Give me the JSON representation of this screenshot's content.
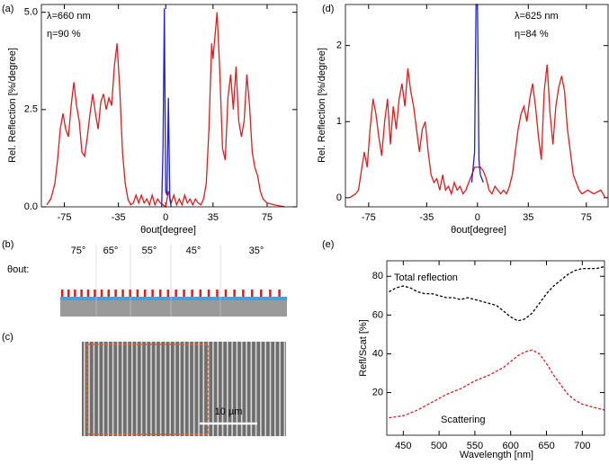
{
  "chart_data": [
    {
      "type": "line",
      "panel_label": "(a)",
      "xlabel": "θout[degree]",
      "ylabel": "Rel. Reflection [%/degree]",
      "xlim": [
        -92,
        97
      ],
      "ylim": [
        0,
        5.2
      ],
      "xticks": [
        -75,
        -35,
        0,
        35,
        75
      ],
      "yticks": [
        {
          "value": 0,
          "label": "0.0"
        },
        {
          "value": 2.5,
          "label": "2.5"
        },
        {
          "value": 5,
          "label": "5.0"
        }
      ],
      "annotations": [
        {
          "text": "λ=660 nm",
          "color": "#000000"
        },
        {
          "text": "η=90 %",
          "color": "#000000"
        }
      ],
      "series": [
        {
          "color": "#e41a1c",
          "dashed": false,
          "x": [
            -88,
            -85,
            -82,
            -80,
            -78,
            -76,
            -74,
            -72,
            -70,
            -68,
            -66,
            -64,
            -62,
            -60,
            -58,
            -56,
            -54,
            -52,
            -50,
            -48,
            -46,
            -44,
            -42,
            -40,
            -38,
            -36,
            -34,
            -32,
            -30,
            -28,
            -26,
            -24,
            -22,
            -20,
            -18,
            -16,
            -14,
            -12,
            -10,
            -8,
            -6,
            -4,
            -2,
            0,
            2,
            4,
            6,
            8,
            10,
            12,
            14,
            16,
            18,
            20,
            22,
            24,
            26,
            28,
            30,
            32,
            34,
            35,
            36,
            38,
            40,
            42,
            44,
            46,
            48,
            50,
            52,
            54,
            56,
            58,
            60,
            62,
            64,
            66,
            68,
            70,
            72,
            75,
            80,
            85,
            88
          ],
          "values": [
            0.05,
            0.2,
            0.6,
            1.2,
            2.0,
            2.4,
            2.0,
            1.8,
            2.6,
            3.2,
            2.6,
            2.2,
            1.4,
            1.3,
            1.8,
            2.4,
            2.9,
            2.4,
            2.0,
            2.7,
            2.9,
            2.5,
            2.8,
            2.6,
            3.6,
            4.2,
            3.0,
            1.4,
            0.6,
            0.2,
            0.05,
            0.1,
            0.3,
            0.1,
            0.3,
            0.1,
            0.2,
            0.05,
            0.3,
            0.05,
            0.2,
            0.1,
            0.05,
            0,
            0.4,
            0.1,
            0.3,
            0.05,
            0.2,
            0.05,
            0.3,
            0.1,
            0.2,
            0.05,
            0.2,
            0.1,
            0.05,
            0.2,
            0.6,
            2.0,
            4.2,
            3.8,
            4.2,
            5.0,
            3.5,
            1.5,
            1.2,
            2.8,
            3.4,
            2.5,
            3.6,
            2.2,
            1.8,
            2.2,
            3.4,
            2.6,
            1.4,
            1.0,
            0.8,
            0.4,
            0.2,
            0.1,
            0.05,
            0.02,
            0
          ]
        },
        {
          "color": "#1f1fd6",
          "dashed": false,
          "x": [
            -3,
            -2,
            -1,
            0,
            1,
            2,
            3,
            4
          ],
          "values": [
            0,
            1.5,
            5.1,
            0.4,
            0.3,
            2.8,
            0.2,
            0
          ]
        }
      ]
    },
    {
      "type": "line",
      "panel_label": "(d)",
      "xlabel": "θout[degree]",
      "ylabel": "Rel. Reflection [%/degree]",
      "xlim": [
        -91,
        90
      ],
      "ylim": [
        -0.12,
        2.54
      ],
      "xticks": [
        -75,
        -35,
        0,
        35,
        75
      ],
      "yticks": [
        0,
        1,
        2
      ],
      "annotations": [
        {
          "text": "λ=625 nm",
          "color": "#000000"
        },
        {
          "text": "η=84 %",
          "color": "#000000"
        }
      ],
      "series": [
        {
          "color": "#e41a1c",
          "dashed": false,
          "x": [
            -88,
            -84,
            -82,
            -80,
            -78,
            -76,
            -74,
            -72,
            -70,
            -68,
            -66,
            -64,
            -62,
            -60,
            -58,
            -56,
            -54,
            -52,
            -50,
            -48,
            -46,
            -44,
            -42,
            -40,
            -38,
            -36,
            -34,
            -32,
            -30,
            -28,
            -26,
            -24,
            -22,
            -20,
            -18,
            -16,
            -14,
            -12,
            -10,
            -8,
            -6,
            -4,
            -2,
            2,
            4,
            6,
            8,
            10,
            12,
            14,
            16,
            18,
            20,
            22,
            24,
            26,
            28,
            30,
            32,
            34,
            36,
            38,
            40,
            42,
            44,
            46,
            48,
            50,
            52,
            54,
            56,
            58,
            60,
            62,
            64,
            66,
            68,
            70,
            72,
            76,
            80,
            85,
            88
          ],
          "values": [
            0,
            0.05,
            0.1,
            0.35,
            0.6,
            0.4,
            0.9,
            1.3,
            1.1,
            0.8,
            0.55,
            1.0,
            1.3,
            0.7,
            1.2,
            0.9,
            1.3,
            1.5,
            1.2,
            1.7,
            1.4,
            1.2,
            0.9,
            0.6,
            0.9,
            1.0,
            0.6,
            0.3,
            0.2,
            0.25,
            0.1,
            0.3,
            0.1,
            0.15,
            0.05,
            0.2,
            0.1,
            0.15,
            0.05,
            0.1,
            0.2,
            0.3,
            0.4,
            0.4,
            0.35,
            0.25,
            0.1,
            0.05,
            0.15,
            0.1,
            0.05,
            0.1,
            0.05,
            0.15,
            0.3,
            0.6,
            0.9,
            1.1,
            1.2,
            1.0,
            1.3,
            1.5,
            1.2,
            0.8,
            0.5,
            1.4,
            1.75,
            1.1,
            0.7,
            1.2,
            1.45,
            1.6,
            1.4,
            0.9,
            0.6,
            0.3,
            0.2,
            0.1,
            0.05,
            0.1,
            0.05,
            0.1,
            0
          ]
        },
        {
          "color": "#1f1fd6",
          "dashed": false,
          "x": [
            -4,
            -2,
            -1,
            0,
            1,
            2,
            4
          ],
          "values": [
            0.2,
            0.6,
            2.54,
            2.54,
            0.5,
            0.3,
            0.2
          ]
        }
      ]
    },
    {
      "type": "line",
      "panel_label": "(e)",
      "xlabel": "Wavelength [nm]",
      "ylabel": "Refl/Scat [%]",
      "xlim": [
        427,
        731
      ],
      "ylim": [
        -2,
        88
      ],
      "xticks": [
        450,
        500,
        550,
        600,
        650,
        700
      ],
      "yticks": [
        20,
        40,
        60,
        80
      ],
      "annotations": [
        {
          "text": "Total reflection",
          "color": "#000000"
        },
        {
          "text": "Scattering",
          "color": "#e41a1c"
        }
      ],
      "series": [
        {
          "color": "#000000",
          "dashed": true,
          "x": [
            430,
            440,
            450,
            460,
            470,
            480,
            490,
            500,
            510,
            520,
            530,
            540,
            550,
            560,
            570,
            580,
            590,
            600,
            610,
            620,
            630,
            640,
            650,
            660,
            670,
            680,
            690,
            700,
            710,
            720,
            731
          ],
          "values": [
            72,
            74,
            75,
            74,
            72,
            71,
            71,
            70,
            69,
            69,
            68,
            69,
            68,
            67,
            66,
            65,
            62,
            59,
            57,
            58,
            61,
            66,
            71,
            75,
            78,
            81,
            83,
            84,
            84,
            84,
            85
          ]
        },
        {
          "color": "#e41a1c",
          "dashed": true,
          "x": [
            430,
            450,
            470,
            490,
            510,
            530,
            550,
            570,
            590,
            600,
            610,
            620,
            630,
            640,
            650,
            660,
            670,
            680,
            690,
            700,
            720,
            731
          ],
          "values": [
            7,
            8,
            11,
            15,
            19,
            22,
            26,
            29,
            33,
            36,
            39,
            41,
            42,
            40,
            35,
            29,
            24,
            19,
            16,
            14,
            12,
            11
          ]
        }
      ]
    }
  ],
  "schematic": {
    "panel_label": "(b)",
    "axis_label": "θout:",
    "angles": [
      "75°",
      "65°",
      "55°",
      "45°",
      "35°"
    ]
  },
  "micrograph": {
    "panel_label": "(c)",
    "scale_bar": "10 µm"
  }
}
